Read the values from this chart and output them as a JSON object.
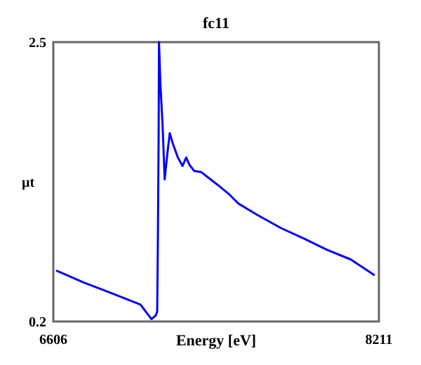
{
  "chart_data": {
    "type": "line",
    "title": "fc11",
    "xlabel": "Energy [eV]",
    "ylabel": "µt",
    "xlim": [
      6606,
      8211
    ],
    "ylim": [
      0.2,
      2.5
    ],
    "xticks": [
      6606,
      8211
    ],
    "yticks": [
      0.2,
      2.5
    ],
    "marker": "none",
    "line_style": "solid",
    "series": [
      {
        "color": "#0000ff",
        "x": [
          6620,
          6757,
          6897,
          7035,
          7090,
          7111,
          7118,
          7121,
          7125,
          7127,
          7134,
          7144,
          7155,
          7168,
          7180,
          7196,
          7220,
          7243,
          7261,
          7277,
          7300,
          7335,
          7381,
          7427,
          7471,
          7519,
          7609,
          7727,
          7845,
          7955,
          8073,
          8190
        ],
        "values": [
          0.62,
          0.52,
          0.43,
          0.34,
          0.22,
          0.25,
          0.28,
          0.77,
          1.69,
          2.5,
          2.15,
          1.84,
          1.37,
          1.58,
          1.75,
          1.66,
          1.55,
          1.48,
          1.55,
          1.49,
          1.44,
          1.43,
          1.37,
          1.31,
          1.25,
          1.17,
          1.08,
          0.97,
          0.88,
          0.79,
          0.71,
          0.58
        ]
      }
    ]
  }
}
